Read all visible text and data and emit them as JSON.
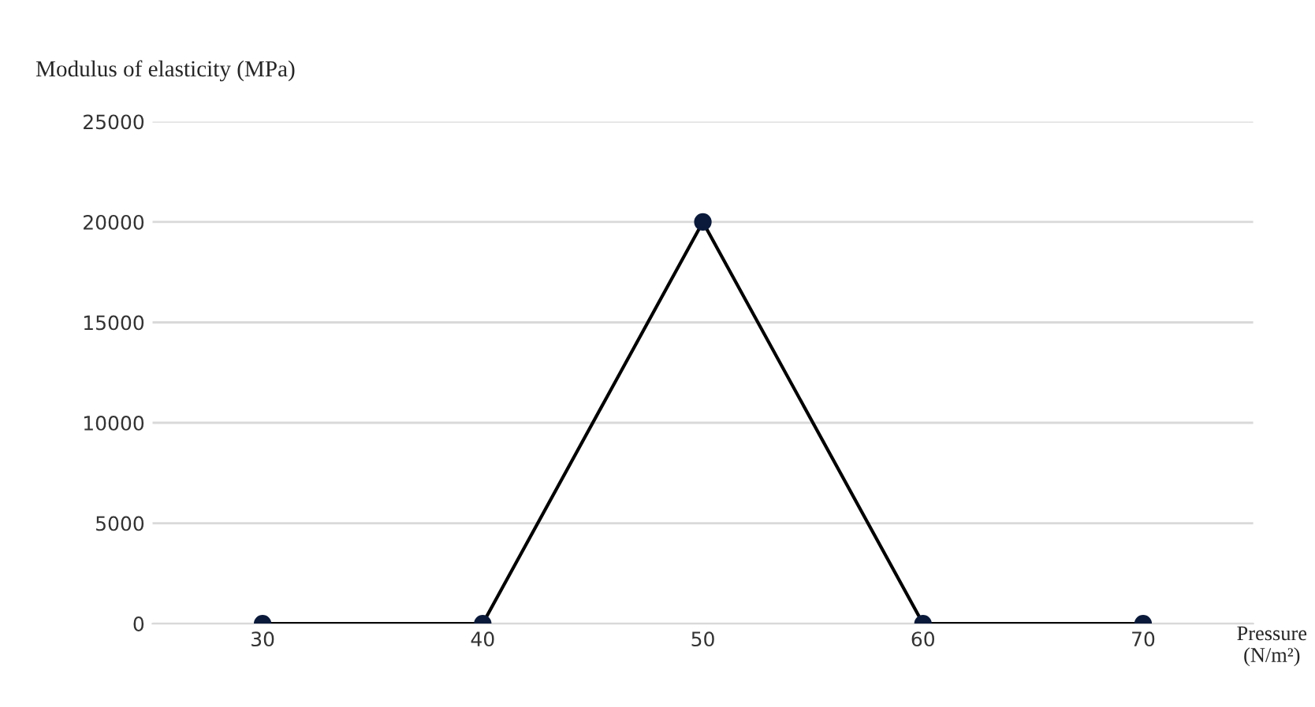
{
  "chart_data": {
    "type": "line",
    "ylabel": "Modulus of elasticity (MPa)",
    "xlabel": "Pressure\n(N/m²)",
    "categories": [
      "30",
      "40",
      "50",
      "60",
      "70"
    ],
    "series": [
      {
        "color": "#000000",
        "values": [
          0,
          0,
          20000,
          0,
          0
        ]
      }
    ],
    "ylim": [
      0,
      25000
    ],
    "yticks": [
      0,
      5000,
      10000,
      15000,
      20000,
      25000
    ],
    "grid": "y",
    "marker": "circle",
    "line_style": "solid",
    "legend": false
  }
}
